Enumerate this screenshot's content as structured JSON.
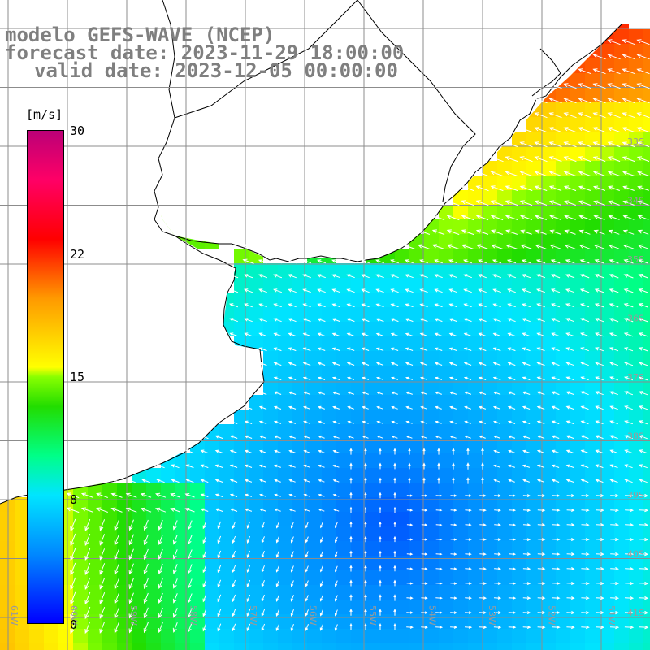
{
  "header": {
    "model": "modelo GEFS-WAVE (NCEP)",
    "forecast": "forecast date: 2023-11-29 18:00:00",
    "valid": "valid date: 2023-12-05 00:00:00"
  },
  "colorbar": {
    "unit": "[m/s]",
    "ticks": [
      "30",
      "22",
      "15",
      "8",
      "0"
    ],
    "tick_values": [
      30,
      22,
      15,
      8,
      0
    ],
    "range": [
      0,
      30
    ]
  },
  "map": {
    "lon_labels": [
      "61W",
      "60W",
      "59W",
      "58W",
      "57W",
      "56W",
      "55W",
      "54W",
      "53W",
      "52W",
      "51W"
    ],
    "lat_labels": [
      "33S",
      "34S",
      "35S",
      "36S",
      "37S",
      "38S",
      "39S",
      "40S",
      "41S"
    ],
    "land_color": "#ffffff",
    "grid_color": "#8c8c8c",
    "coast_color": "#000000",
    "arrow_color": "#ffffff"
  }
}
